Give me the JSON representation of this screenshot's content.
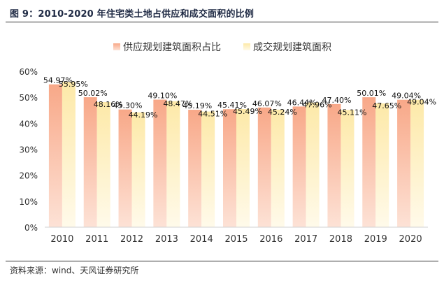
{
  "title": "图 9：2010-2020 年住宅类土地占供应和成交面积的比例",
  "source": "资料来源：wind、天风证券研究所",
  "colors": {
    "supply_top": "#f8a888",
    "supply_bottom": "#fde2d6",
    "deal_top": "#fde9a8",
    "deal_bottom": "#fffaea",
    "axis": "#d0d0d0",
    "text": "#333333"
  },
  "chart_data": {
    "type": "bar",
    "title": "",
    "xlabel": "",
    "ylabel": "",
    "ylim": [
      0,
      60
    ],
    "yticks": [
      "0%",
      "10%",
      "20%",
      "30%",
      "40%",
      "50%",
      "60%"
    ],
    "categories": [
      "2010",
      "2011",
      "2012",
      "2013",
      "2014",
      "2015",
      "2016",
      "2017",
      "2018",
      "2019",
      "2020"
    ],
    "series": [
      {
        "name": "供应规划建筑面积占比",
        "values": [
          54.97,
          50.02,
          45.3,
          49.1,
          45.19,
          45.41,
          46.07,
          46.44,
          47.4,
          50.01,
          49.04
        ],
        "labels": [
          "54.97%",
          "50.02%",
          "45.30%",
          "49.10%",
          "45.19%",
          "45.41%",
          "46.07%",
          "46.44%",
          "47.40%",
          "50.01%",
          "49.04%"
        ]
      },
      {
        "name": "成交规划建筑面积",
        "values": [
          55.95,
          48.16,
          44.19,
          48.47,
          44.51,
          45.49,
          45.24,
          47.96,
          45.11,
          47.65,
          49.04
        ],
        "labels": [
          "55.95%",
          "48.16%",
          "44.19%",
          "48.47%",
          "44.51%",
          "45.49%",
          "45.24%",
          "47.96%",
          "45.11%",
          "47.65%",
          "49.04%"
        ]
      }
    ],
    "legend_position": "top-center"
  }
}
